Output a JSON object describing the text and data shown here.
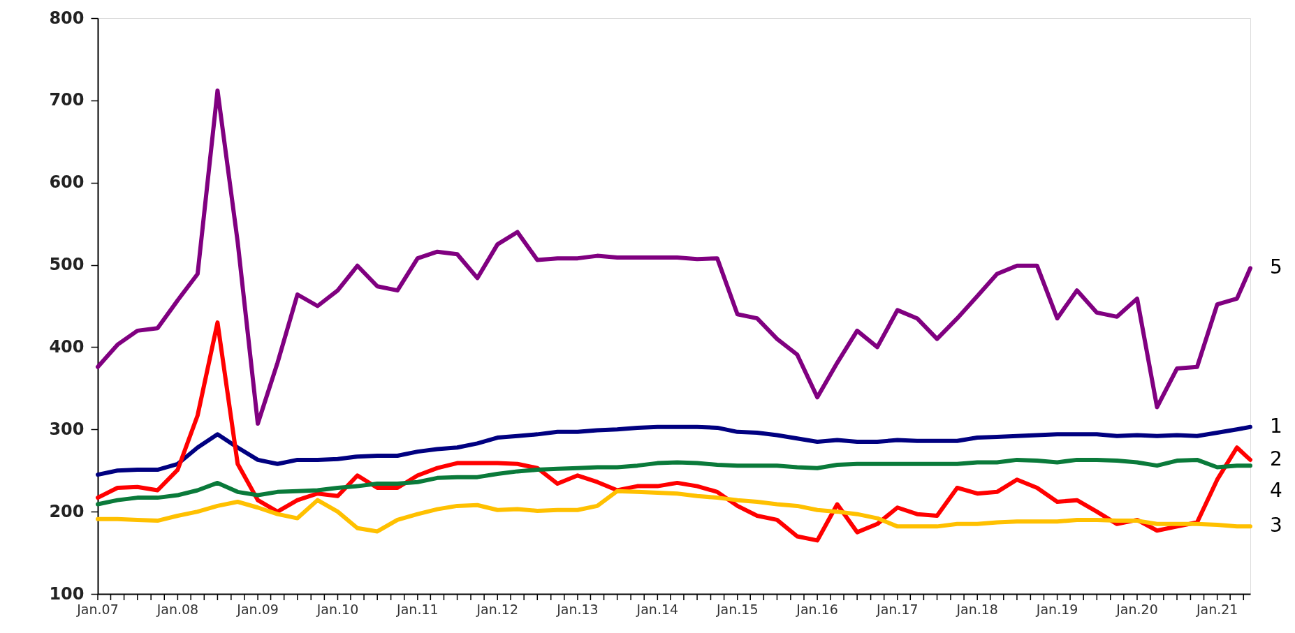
{
  "chart_data": {
    "type": "line",
    "legend": false,
    "grid": false,
    "x": [
      "2007-01",
      "2007-04",
      "2007-07",
      "2007-10",
      "2008-01",
      "2008-04",
      "2008-07",
      "2008-10",
      "2009-01",
      "2009-04",
      "2009-07",
      "2009-10",
      "2010-01",
      "2010-04",
      "2010-07",
      "2010-10",
      "2011-01",
      "2011-04",
      "2011-07",
      "2011-10",
      "2012-01",
      "2012-04",
      "2012-07",
      "2012-10",
      "2013-01",
      "2013-04",
      "2013-07",
      "2013-10",
      "2014-01",
      "2014-04",
      "2014-07",
      "2014-10",
      "2015-01",
      "2015-04",
      "2015-07",
      "2015-10",
      "2016-01",
      "2016-04",
      "2016-07",
      "2016-10",
      "2017-01",
      "2017-04",
      "2017-07",
      "2017-10",
      "2018-01",
      "2018-04",
      "2018-07",
      "2018-10",
      "2019-01",
      "2019-04",
      "2019-07",
      "2019-10",
      "2020-01",
      "2020-04",
      "2020-07",
      "2020-10",
      "2021-01",
      "2021-04",
      "2021-06"
    ],
    "xlim": [
      "2007-01",
      "2021-06"
    ],
    "xticks": [
      {
        "value": "2007-01",
        "label": "Jan.07"
      },
      {
        "value": "2007-03",
        "label": null
      },
      {
        "value": "2007-05",
        "label": null
      },
      {
        "value": "2007-07",
        "label": null
      },
      {
        "value": "2007-09",
        "label": null
      },
      {
        "value": "2007-11",
        "label": null
      },
      {
        "value": "2008-01",
        "label": "Jan.08"
      },
      {
        "value": "2008-03",
        "label": null
      },
      {
        "value": "2008-05",
        "label": null
      },
      {
        "value": "2008-07",
        "label": null
      },
      {
        "value": "2008-09",
        "label": null
      },
      {
        "value": "2008-11",
        "label": null
      },
      {
        "value": "2009-01",
        "label": "Jan.09"
      },
      {
        "value": "2009-03",
        "label": null
      },
      {
        "value": "2009-05",
        "label": null
      },
      {
        "value": "2009-07",
        "label": null
      },
      {
        "value": "2009-09",
        "label": null
      },
      {
        "value": "2009-11",
        "label": null
      },
      {
        "value": "2010-01",
        "label": "Jan.10"
      },
      {
        "value": "2010-03",
        "label": null
      },
      {
        "value": "2010-05",
        "label": null
      },
      {
        "value": "2010-07",
        "label": null
      },
      {
        "value": "2010-09",
        "label": null
      },
      {
        "value": "2010-11",
        "label": null
      },
      {
        "value": "2011-01",
        "label": "Jan.11"
      },
      {
        "value": "2011-03",
        "label": null
      },
      {
        "value": "2011-05",
        "label": null
      },
      {
        "value": "2011-07",
        "label": null
      },
      {
        "value": "2011-09",
        "label": null
      },
      {
        "value": "2011-11",
        "label": null
      },
      {
        "value": "2012-01",
        "label": "Jan.12"
      },
      {
        "value": "2012-03",
        "label": null
      },
      {
        "value": "2012-05",
        "label": null
      },
      {
        "value": "2012-07",
        "label": null
      },
      {
        "value": "2012-09",
        "label": null
      },
      {
        "value": "2012-11",
        "label": null
      },
      {
        "value": "2013-01",
        "label": "Jan.13"
      },
      {
        "value": "2013-03",
        "label": null
      },
      {
        "value": "2013-05",
        "label": null
      },
      {
        "value": "2013-07",
        "label": null
      },
      {
        "value": "2013-09",
        "label": null
      },
      {
        "value": "2013-11",
        "label": null
      },
      {
        "value": "2014-01",
        "label": "Jan.14"
      },
      {
        "value": "2014-03",
        "label": null
      },
      {
        "value": "2014-05",
        "label": null
      },
      {
        "value": "2014-07",
        "label": null
      },
      {
        "value": "2014-09",
        "label": null
      },
      {
        "value": "2014-11",
        "label": null
      },
      {
        "value": "2015-01",
        "label": "Jan.15"
      },
      {
        "value": "2015-03",
        "label": null
      },
      {
        "value": "2015-05",
        "label": null
      },
      {
        "value": "2015-07",
        "label": null
      },
      {
        "value": "2015-09",
        "label": null
      },
      {
        "value": "2015-11",
        "label": null
      },
      {
        "value": "2016-01",
        "label": "Jan.16"
      },
      {
        "value": "2016-03",
        "label": null
      },
      {
        "value": "2016-05",
        "label": null
      },
      {
        "value": "2016-07",
        "label": null
      },
      {
        "value": "2016-09",
        "label": null
      },
      {
        "value": "2016-11",
        "label": null
      },
      {
        "value": "2017-01",
        "label": "Jan.17"
      },
      {
        "value": "2017-03",
        "label": null
      },
      {
        "value": "2017-05",
        "label": null
      },
      {
        "value": "2017-07",
        "label": null
      },
      {
        "value": "2017-09",
        "label": null
      },
      {
        "value": "2017-11",
        "label": null
      },
      {
        "value": "2018-01",
        "label": "Jan.18"
      },
      {
        "value": "2018-03",
        "label": null
      },
      {
        "value": "2018-05",
        "label": null
      },
      {
        "value": "2018-07",
        "label": null
      },
      {
        "value": "2018-09",
        "label": null
      },
      {
        "value": "2018-11",
        "label": null
      },
      {
        "value": "2019-01",
        "label": "Jan.19"
      },
      {
        "value": "2019-03",
        "label": null
      },
      {
        "value": "2019-05",
        "label": null
      },
      {
        "value": "2019-07",
        "label": null
      },
      {
        "value": "2019-09",
        "label": null
      },
      {
        "value": "2019-11",
        "label": null
      },
      {
        "value": "2020-01",
        "label": "Jan.20"
      },
      {
        "value": "2020-03",
        "label": null
      },
      {
        "value": "2020-05",
        "label": null
      },
      {
        "value": "2020-07",
        "label": null
      },
      {
        "value": "2020-09",
        "label": null
      },
      {
        "value": "2020-11",
        "label": null
      },
      {
        "value": "2021-01",
        "label": "Jan.21"
      },
      {
        "value": "2021-03",
        "label": null
      },
      {
        "value": "2021-05",
        "label": null
      }
    ],
    "ylim": [
      100,
      800
    ],
    "yticks": [
      100,
      200,
      300,
      400,
      500,
      600,
      700,
      800
    ],
    "series": [
      {
        "name": "1",
        "color": "#000080",
        "values": [
          245,
          250,
          251,
          251,
          258,
          278,
          294,
          278,
          263,
          258,
          263,
          263,
          264,
          267,
          268,
          268,
          273,
          276,
          278,
          283,
          290,
          292,
          294,
          297,
          297,
          299,
          300,
          302,
          303,
          303,
          303,
          302,
          297,
          296,
          293,
          289,
          285,
          287,
          285,
          285,
          287,
          286,
          286,
          286,
          290,
          291,
          292,
          293,
          294,
          294,
          294,
          292,
          293,
          292,
          293,
          292,
          296,
          300,
          303
        ]
      },
      {
        "name": "2",
        "color": "#ff0000",
        "values": [
          217,
          229,
          230,
          226,
          251,
          317,
          430,
          258,
          214,
          200,
          214,
          222,
          219,
          244,
          229,
          229,
          244,
          253,
          259,
          259,
          259,
          258,
          253,
          234,
          244,
          236,
          226,
          231,
          231,
          235,
          231,
          224,
          207,
          195,
          190,
          170,
          165,
          209,
          175,
          185,
          205,
          197,
          195,
          229,
          222,
          224,
          239,
          229,
          212,
          214,
          200,
          185,
          190,
          177,
          182,
          187,
          239,
          278,
          263
        ]
      },
      {
        "name": "3",
        "color": "#ffc000",
        "values": [
          191,
          191,
          190,
          189,
          195,
          200,
          207,
          212,
          205,
          197,
          192,
          214,
          200,
          180,
          176,
          190,
          197,
          203,
          207,
          208,
          202,
          203,
          201,
          202,
          202,
          207,
          225,
          224,
          223,
          222,
          219,
          217,
          214,
          212,
          209,
          207,
          202,
          200,
          197,
          192,
          182,
          182,
          182,
          185,
          185,
          187,
          188,
          188,
          188,
          190,
          190,
          189,
          189,
          185,
          185,
          185,
          184,
          182,
          182
        ]
      },
      {
        "name": "4",
        "color": "#0a7a3a",
        "values": [
          209,
          214,
          217,
          217,
          220,
          226,
          235,
          224,
          220,
          224,
          225,
          226,
          229,
          231,
          234,
          234,
          236,
          241,
          242,
          242,
          246,
          249,
          251,
          252,
          253,
          254,
          254,
          256,
          259,
          260,
          259,
          257,
          256,
          256,
          256,
          254,
          253,
          257,
          258,
          258,
          258,
          258,
          258,
          258,
          260,
          260,
          263,
          262,
          260,
          263,
          263,
          262,
          260,
          256,
          262,
          263,
          254,
          256,
          256
        ]
      },
      {
        "name": "5",
        "color": "#800080",
        "values": [
          376,
          403,
          420,
          423,
          457,
          489,
          712,
          528,
          307,
          381,
          464,
          450,
          469,
          499,
          474,
          469,
          508,
          516,
          513,
          484,
          525,
          540,
          506,
          508,
          508,
          511,
          509,
          509,
          509,
          509,
          507,
          508,
          440,
          435,
          410,
          391,
          339,
          381,
          420,
          400,
          445,
          435,
          410,
          435,
          462,
          489,
          499,
          499,
          435,
          469,
          442,
          437,
          459,
          327,
          374,
          376,
          452,
          459,
          496
        ]
      }
    ]
  }
}
